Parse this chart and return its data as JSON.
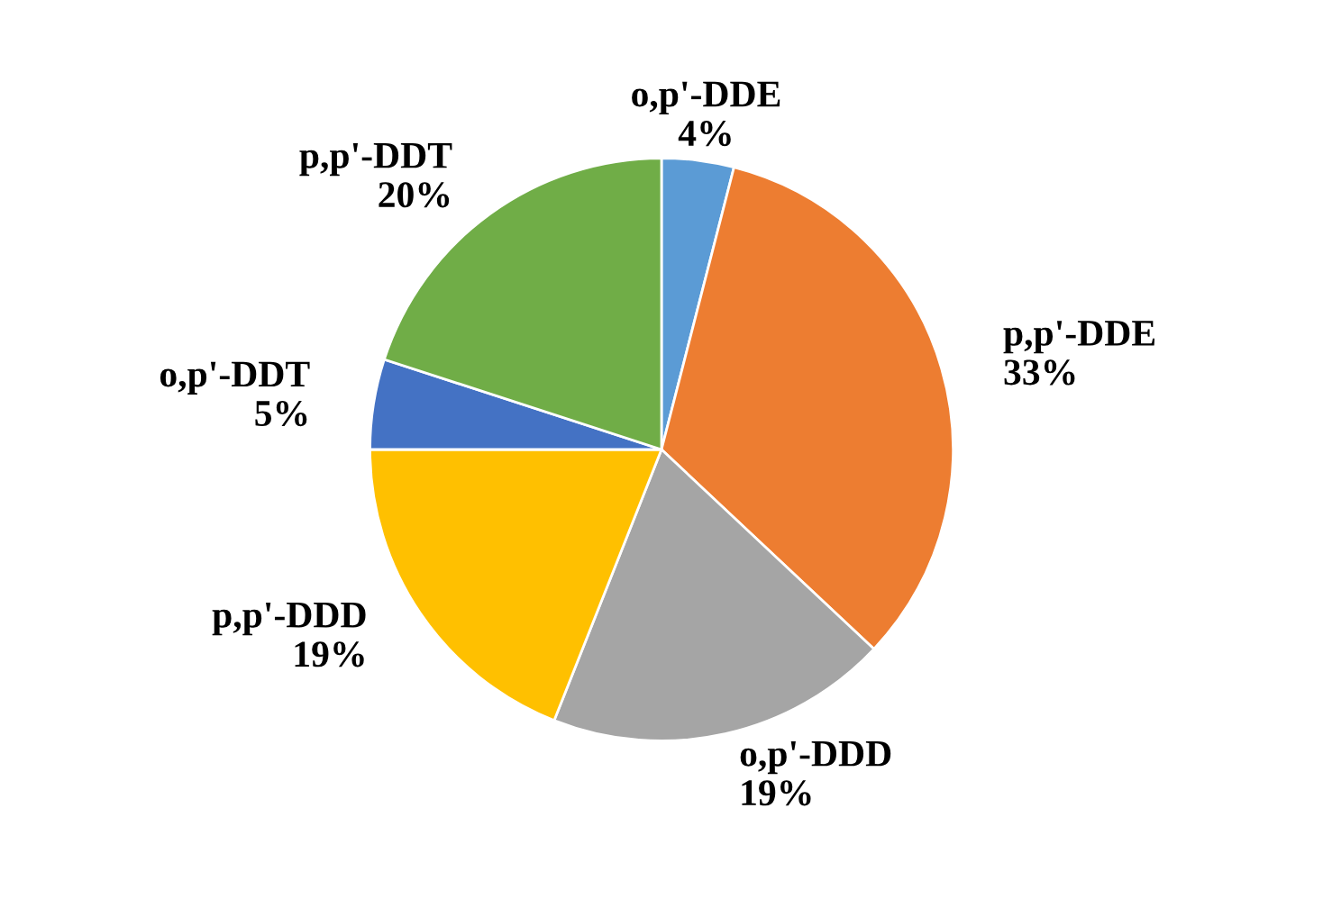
{
  "chart_data": {
    "type": "pie",
    "categories": [
      "o,p'-DDE",
      "p,p'-DDE",
      "o,p'-DDD",
      "p,p'-DDD",
      "o,p'-DDT",
      "p,p'-DDT"
    ],
    "values": [
      4,
      33,
      19,
      19,
      5,
      20
    ],
    "colors": [
      "#5b9bd5",
      "#ed7d31",
      "#a5a5a5",
      "#ffc000",
      "#4472c4",
      "#70ad47"
    ],
    "value_labels": [
      "4%",
      "33%",
      "19%",
      "19%",
      "5%",
      "20%"
    ]
  }
}
